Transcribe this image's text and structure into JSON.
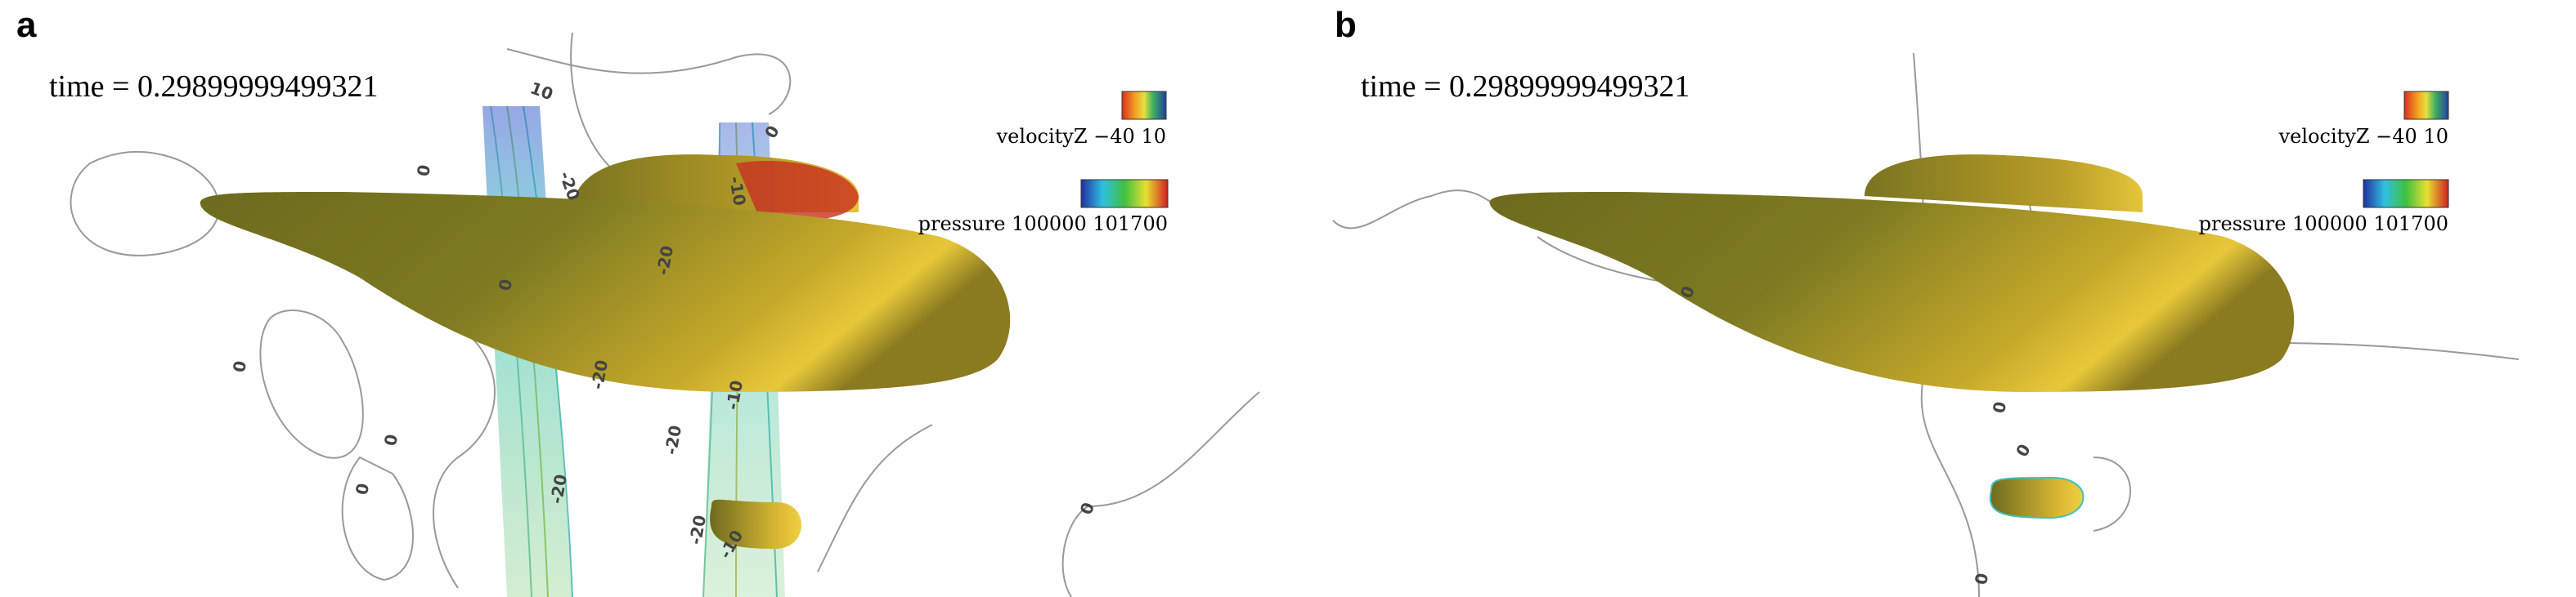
{
  "panels": [
    {
      "label": "a",
      "time_text": "time = 0.29899999499321",
      "legends": [
        {
          "name": "velocityZ",
          "min": "−40",
          "max": "10"
        },
        {
          "name": "pressure",
          "min": "100000",
          "max": "101700"
        }
      ],
      "contour_labels": [
        "0",
        "10",
        "0",
        "0",
        "-20",
        "-10",
        "-20",
        "-10",
        "0",
        "0",
        "0",
        "-20",
        "-20",
        "-20",
        "-20",
        "-10",
        "0"
      ]
    },
    {
      "label": "b",
      "time_text": "time = 0.29899999499321",
      "legends": [
        {
          "name": "velocityZ",
          "min": "−40",
          "max": "10"
        },
        {
          "name": "pressure",
          "min": "100000",
          "max": "101700"
        }
      ],
      "contour_labels": [
        "0",
        "0",
        "0",
        "0"
      ]
    }
  ]
}
